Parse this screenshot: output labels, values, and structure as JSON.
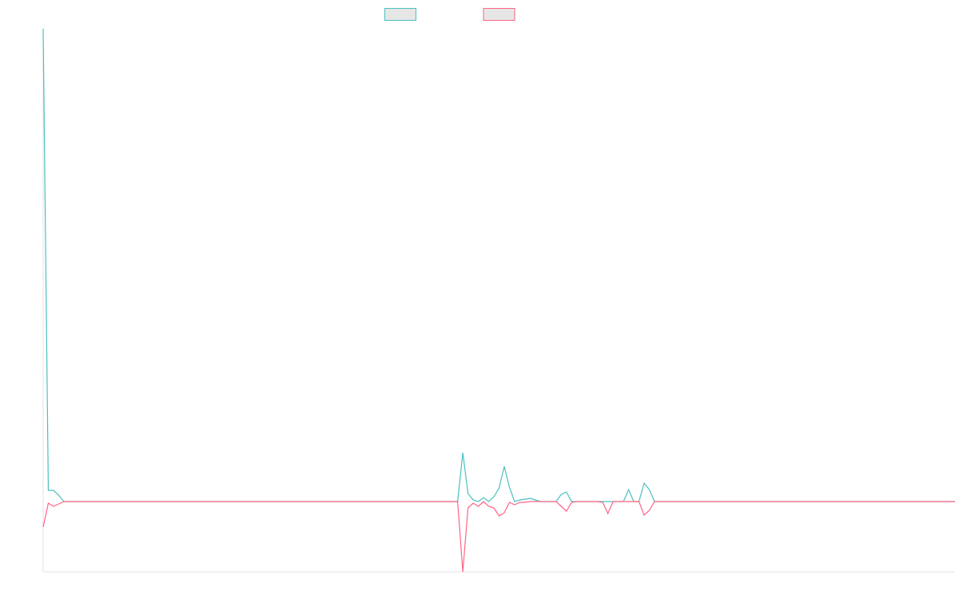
{
  "chart_data": {
    "type": "line",
    "x": [
      0,
      1,
      2,
      3,
      4,
      5,
      6,
      7,
      8,
      9,
      10,
      11,
      12,
      13,
      14,
      15,
      16,
      17,
      18,
      19,
      20,
      21,
      22,
      23,
      24,
      25,
      26,
      27,
      28,
      29,
      30,
      31,
      32,
      33,
      34,
      35,
      36,
      37,
      38,
      39,
      40,
      41,
      42,
      43,
      44,
      45,
      46,
      47,
      48,
      49,
      50,
      51,
      52,
      53,
      54,
      55,
      56,
      57,
      58,
      59,
      60,
      61,
      62,
      63,
      64,
      65,
      66,
      67,
      68,
      69,
      70,
      71,
      72,
      73,
      74,
      75,
      76,
      77,
      78,
      79,
      80,
      81,
      82,
      83,
      84,
      85,
      86,
      87,
      88,
      89,
      90,
      91,
      92,
      93,
      94,
      95,
      96,
      97,
      98,
      99,
      100,
      101,
      102,
      103,
      104,
      105,
      106,
      107,
      108,
      109,
      110,
      111,
      112,
      113,
      114,
      115,
      116,
      117,
      118,
      119,
      120,
      121,
      122,
      123,
      124,
      125,
      126,
      127,
      128,
      129,
      130,
      131,
      132,
      133,
      134,
      135,
      136,
      137,
      138,
      139,
      140,
      141,
      142,
      143,
      144,
      145,
      146,
      147,
      148,
      149,
      150,
      151,
      152,
      153,
      154,
      155,
      156,
      157,
      158,
      159,
      160,
      161,
      162,
      163,
      164,
      165,
      166,
      167,
      168,
      169,
      170,
      171,
      172,
      173,
      174,
      175,
      176
    ],
    "xlim": [
      0,
      176
    ],
    "ylim": [
      -8.8,
      59.2
    ],
    "series": [
      {
        "color": "#4bc0c0",
        "values": [
          59.2,
          1.4,
          1.4,
          0.8,
          0,
          0,
          0,
          0,
          0,
          0,
          0,
          0,
          0,
          0,
          0,
          0,
          0,
          0,
          0,
          0,
          0,
          0,
          0,
          0,
          0,
          0,
          0,
          0,
          0,
          0,
          0,
          0,
          0,
          0,
          0,
          0,
          0,
          0,
          0,
          0,
          0,
          0,
          0,
          0,
          0,
          0,
          0,
          0,
          0,
          0,
          0,
          0,
          0,
          0,
          0,
          0,
          0,
          0,
          0,
          0,
          0,
          0,
          0,
          0,
          0,
          0,
          0,
          0,
          0,
          0,
          0,
          0,
          0,
          0,
          0,
          0,
          0,
          0,
          0,
          0,
          0,
          6.1,
          1.0,
          0.2,
          0,
          0.5,
          0,
          0.6,
          1.7,
          4.4,
          1.8,
          0,
          0.2,
          0.3,
          0.4,
          0.2,
          0,
          0,
          0,
          0,
          0.9,
          1.2,
          0,
          0,
          0,
          0,
          0,
          0,
          0,
          0,
          0,
          0,
          0,
          1.5,
          0,
          0,
          2.3,
          1.5,
          0,
          0,
          0,
          0,
          0,
          0,
          0,
          0,
          0,
          0,
          0,
          0,
          0,
          0,
          0,
          0,
          0,
          0,
          0,
          0,
          0,
          0,
          0,
          0,
          0,
          0,
          0,
          0,
          0,
          0,
          0,
          0,
          0,
          0,
          0,
          0,
          0,
          0,
          0,
          0,
          0,
          0,
          0,
          0,
          0,
          0,
          0,
          0,
          0,
          0,
          0,
          0,
          0,
          0,
          0,
          0,
          0,
          0,
          0
        ]
      },
      {
        "color": "#ff6384",
        "values": [
          -3.2,
          -0.2,
          -0.6,
          -0.3,
          0,
          0,
          0,
          0,
          0,
          0,
          0,
          0,
          0,
          0,
          0,
          0,
          0,
          0,
          0,
          0,
          0,
          0,
          0,
          0,
          0,
          0,
          0,
          0,
          0,
          0,
          0,
          0,
          0,
          0,
          0,
          0,
          0,
          0,
          0,
          0,
          0,
          0,
          0,
          0,
          0,
          0,
          0,
          0,
          0,
          0,
          0,
          0,
          0,
          0,
          0,
          0,
          0,
          0,
          0,
          0,
          0,
          0,
          0,
          0,
          0,
          0,
          0,
          0,
          0,
          0,
          0,
          0,
          0,
          0,
          0,
          0,
          0,
          0,
          0,
          0,
          0,
          -8.8,
          -0.8,
          -0.2,
          -0.6,
          0,
          -0.6,
          -0.8,
          -1.8,
          -1.4,
          -0.1,
          -0.4,
          -0.1,
          -0.1,
          0,
          0,
          0,
          0,
          0,
          0,
          -0.6,
          -1.2,
          -0.1,
          0,
          0,
          0,
          0,
          0,
          -0.1,
          -1.5,
          0,
          0,
          0,
          0,
          0,
          0,
          -1.7,
          -1.1,
          0,
          0,
          0,
          0,
          0,
          0,
          0,
          0,
          0,
          0,
          0,
          0,
          0,
          0,
          0,
          0,
          0,
          0,
          0,
          0,
          0,
          0,
          0,
          0,
          0,
          0,
          0,
          0,
          0,
          0,
          0,
          0,
          0,
          0,
          0,
          0,
          0,
          0,
          0,
          0,
          0,
          0,
          0,
          0,
          0,
          0,
          0,
          0,
          0,
          0,
          0,
          0,
          0,
          0,
          0,
          0,
          0,
          0,
          0
        ]
      }
    ]
  }
}
